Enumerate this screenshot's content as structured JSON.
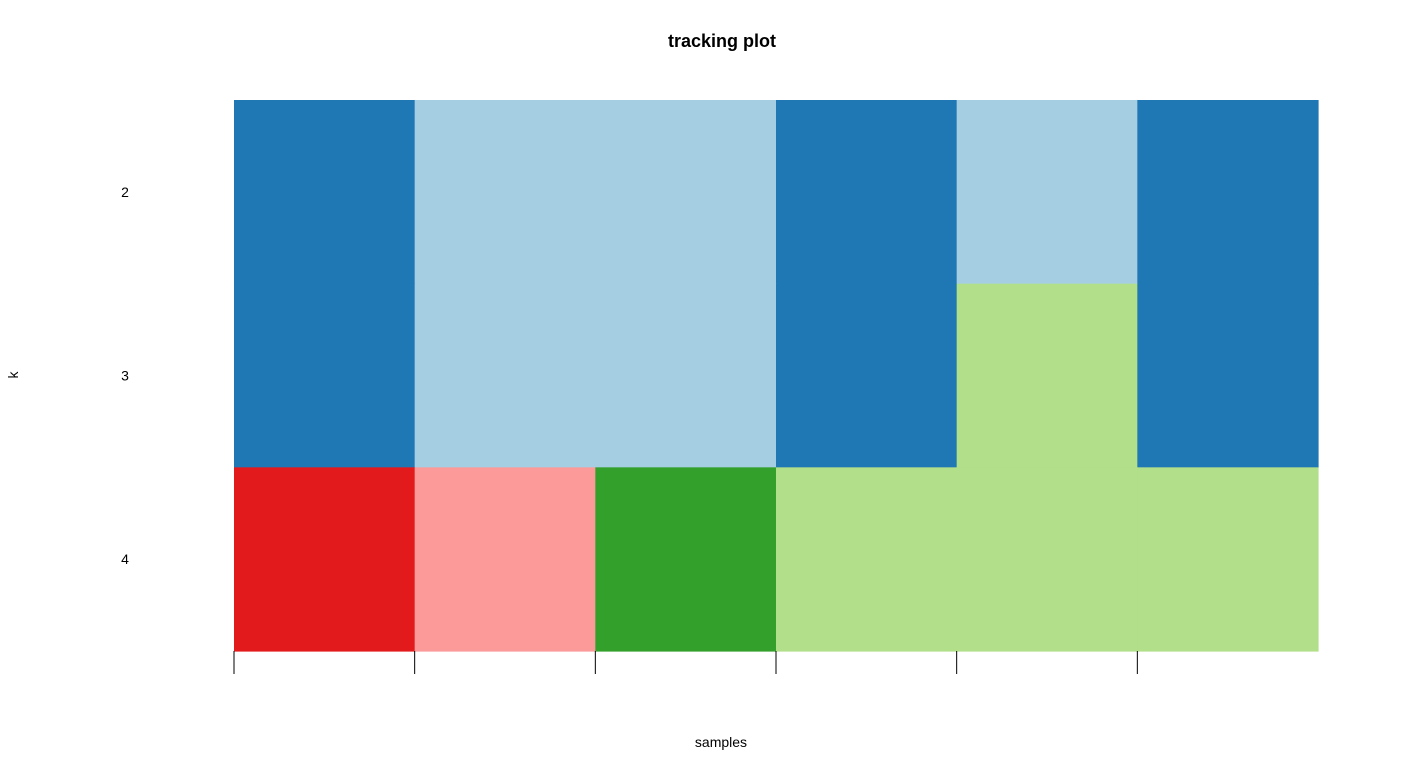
{
  "chart_data": {
    "type": "heatmap",
    "title": "tracking plot",
    "xlabel": "samples",
    "ylabel": "k",
    "rows": [
      "2",
      "3",
      "4"
    ],
    "samples": 6,
    "tick_marks": 6,
    "palette": {
      "dark_blue": "#1f78b4",
      "light_blue": "#a6cee3",
      "light_green": "#b2df8a",
      "red": "#e31a1c",
      "pink": "#fb9a99",
      "green": "#33a02c"
    },
    "cells": [
      [
        "dark_blue",
        "light_blue",
        "light_blue",
        "dark_blue",
        "light_blue",
        "dark_blue"
      ],
      [
        "dark_blue",
        "light_blue",
        "light_blue",
        "dark_blue",
        "light_green",
        "dark_blue"
      ],
      [
        "red",
        "pink",
        "green",
        "light_green",
        "light_green",
        "light_green"
      ]
    ],
    "grid": false,
    "legend": "none"
  }
}
